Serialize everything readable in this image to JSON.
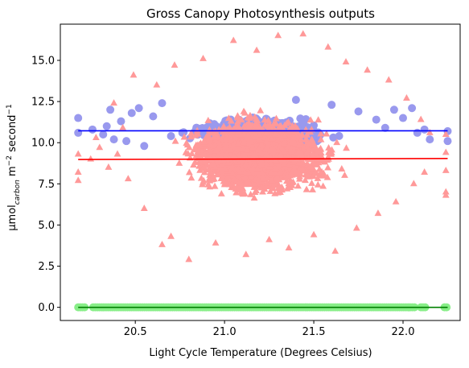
{
  "chart_data": {
    "type": "scatter",
    "title": "Gross Canopy Photosynthesis outputs",
    "xlabel": "Light Cycle Temperature (Degrees Celsius)",
    "ylabel": {
      "base": "μmol",
      "sub": "carbon",
      "mid": " m",
      "sup1": "−2",
      "mid2": " second",
      "sup2": "−1"
    },
    "xlim": [
      20.08,
      22.32
    ],
    "ylim": [
      -0.8,
      17.2
    ],
    "x_ticks": [
      20.5,
      21.0,
      21.5,
      22.0
    ],
    "x_tick_labels": [
      "20.5",
      "21.0",
      "21.5",
      "22.0"
    ],
    "y_ticks": [
      0.0,
      2.5,
      5.0,
      7.5,
      10.0,
      12.5,
      15.0
    ],
    "y_tick_labels": [
      "0.0",
      "2.5",
      "5.0",
      "7.5",
      "10.0",
      "12.5",
      "15.0"
    ],
    "grid": false,
    "series": [
      {
        "marker": "circle",
        "color": "#9999ee",
        "points": [
          [
            20.18,
            11.5
          ],
          [
            20.18,
            10.6
          ],
          [
            20.26,
            10.8
          ],
          [
            20.32,
            10.5
          ],
          [
            20.34,
            11.0
          ],
          [
            20.36,
            12.0
          ],
          [
            20.38,
            10.2
          ],
          [
            20.42,
            11.3
          ],
          [
            20.45,
            10.1
          ],
          [
            20.48,
            11.8
          ],
          [
            20.52,
            12.1
          ],
          [
            20.55,
            9.8
          ],
          [
            20.6,
            11.6
          ],
          [
            20.65,
            12.4
          ],
          [
            20.7,
            10.4
          ],
          [
            21.4,
            12.6
          ],
          [
            21.6,
            12.3
          ],
          [
            21.75,
            11.9
          ],
          [
            21.85,
            11.4
          ],
          [
            21.9,
            10.9
          ],
          [
            21.95,
            12.0
          ],
          [
            22.0,
            11.5
          ],
          [
            22.05,
            12.1
          ],
          [
            22.08,
            10.6
          ],
          [
            22.12,
            10.8
          ],
          [
            22.15,
            10.2
          ],
          [
            22.25,
            10.7
          ],
          [
            22.25,
            10.1
          ],
          [
            20.9,
            9.9
          ],
          [
            21.2,
            10.3
          ]
        ]
      },
      {
        "marker": "triangle",
        "color": "#ff9999",
        "points": [
          [
            20.18,
            9.3
          ],
          [
            20.18,
            8.2
          ],
          [
            20.18,
            7.7
          ],
          [
            20.25,
            9.0
          ],
          [
            20.28,
            10.3
          ],
          [
            20.3,
            9.7
          ],
          [
            20.35,
            8.5
          ],
          [
            20.38,
            12.4
          ],
          [
            20.4,
            9.3
          ],
          [
            20.43,
            10.9
          ],
          [
            20.46,
            7.8
          ],
          [
            20.49,
            14.1
          ],
          [
            20.55,
            6.0
          ],
          [
            20.62,
            13.5
          ],
          [
            20.65,
            3.8
          ],
          [
            20.7,
            4.3
          ],
          [
            20.72,
            14.7
          ],
          [
            20.8,
            2.9
          ],
          [
            20.88,
            15.1
          ],
          [
            20.95,
            3.9
          ],
          [
            21.05,
            16.2
          ],
          [
            21.12,
            3.2
          ],
          [
            21.18,
            15.6
          ],
          [
            21.25,
            4.1
          ],
          [
            21.3,
            16.5
          ],
          [
            21.36,
            3.6
          ],
          [
            21.44,
            16.6
          ],
          [
            21.5,
            4.4
          ],
          [
            21.58,
            15.8
          ],
          [
            21.62,
            3.4
          ],
          [
            21.68,
            14.9
          ],
          [
            21.74,
            4.8
          ],
          [
            21.8,
            14.4
          ],
          [
            21.86,
            5.7
          ],
          [
            21.92,
            13.8
          ],
          [
            21.96,
            6.4
          ],
          [
            22.02,
            12.7
          ],
          [
            22.06,
            7.5
          ],
          [
            22.1,
            11.4
          ],
          [
            22.12,
            8.2
          ],
          [
            22.15,
            10.6
          ],
          [
            22.24,
            10.5
          ],
          [
            22.24,
            9.4
          ],
          [
            22.24,
            8.3
          ],
          [
            22.24,
            7.0
          ],
          [
            22.24,
            6.8
          ]
        ],
        "cloud": {
          "center_x": 21.2,
          "center_y": 9.2,
          "spread_x": 0.3,
          "spread_y": 1.7
        }
      },
      {
        "marker": "circle",
        "color": "#88ee88",
        "x_range": [
          20.18,
          22.25
        ],
        "y": 0.0
      }
    ],
    "trend_lines": [
      {
        "color": "#0000ff",
        "x": [
          20.18,
          22.25
        ],
        "y": [
          10.72,
          10.72
        ]
      },
      {
        "color": "#ff0000",
        "x": [
          20.18,
          22.25
        ],
        "y": [
          8.98,
          9.04
        ]
      },
      {
        "color": "#008000",
        "x": [
          20.18,
          22.25
        ],
        "y": [
          0.0,
          0.0
        ]
      }
    ]
  }
}
